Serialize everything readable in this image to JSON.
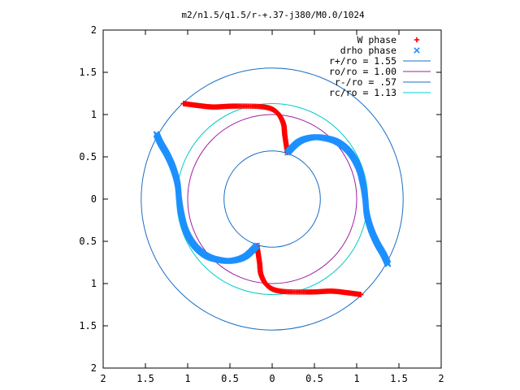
{
  "chart_data": {
    "type": "scatter",
    "title": "m2/n1.5/q1.5/r-+.37-j380/M0.0/1024",
    "xlim": [
      -2,
      2
    ],
    "ylim": [
      -2,
      2
    ],
    "x_tick_labels": [
      "2",
      "1.5",
      "1",
      "0.5",
      "0",
      "0.5",
      "1",
      "1.5",
      "2"
    ],
    "y_tick_labels": [
      "2",
      "1.5",
      "1",
      "0.5",
      "0",
      "0.5",
      "1",
      "1.5",
      "2"
    ],
    "grid": false,
    "legend_position": "top-right",
    "series": [
      {
        "name": "W phase",
        "kind": "points",
        "marker": "+",
        "color": "#ff0000",
        "points": [
          [
            -1.05,
            1.13
          ],
          [
            -0.9,
            1.11
          ],
          [
            -0.7,
            1.09
          ],
          [
            -0.45,
            1.1
          ],
          [
            -0.1,
            1.09
          ],
          [
            0.05,
            1.03
          ],
          [
            0.13,
            0.9
          ],
          [
            0.15,
            0.75
          ],
          [
            0.18,
            0.55
          ]
        ]
      },
      {
        "name": "W phase",
        "kind": "points",
        "marker": "+",
        "color": "#ff0000",
        "points": [
          [
            -0.18,
            -0.55
          ],
          [
            -0.15,
            -0.75
          ],
          [
            -0.13,
            -0.9
          ],
          [
            -0.05,
            -1.03
          ],
          [
            0.1,
            -1.09
          ],
          [
            0.45,
            -1.1
          ],
          [
            0.7,
            -1.09
          ],
          [
            0.9,
            -1.11
          ],
          [
            1.05,
            -1.13
          ]
        ]
      },
      {
        "name": "drho phase",
        "kind": "points",
        "marker": "x",
        "color": "#1e90ff",
        "points": [
          [
            0.18,
            0.55
          ],
          [
            0.32,
            0.68
          ],
          [
            0.48,
            0.73
          ],
          [
            0.63,
            0.72
          ],
          [
            0.78,
            0.67
          ],
          [
            0.92,
            0.55
          ],
          [
            1.02,
            0.38
          ],
          [
            1.07,
            0.2
          ],
          [
            1.1,
            0.02
          ],
          [
            1.12,
            -0.18
          ],
          [
            1.17,
            -0.36
          ],
          [
            1.24,
            -0.52
          ],
          [
            1.32,
            -0.66
          ],
          [
            1.37,
            -0.77
          ]
        ]
      },
      {
        "name": "drho phase",
        "kind": "points",
        "marker": "x",
        "color": "#1e90ff",
        "points": [
          [
            -1.37,
            0.77
          ],
          [
            -1.32,
            0.66
          ],
          [
            -1.24,
            0.52
          ],
          [
            -1.17,
            0.36
          ],
          [
            -1.12,
            0.18
          ],
          [
            -1.1,
            -0.02
          ],
          [
            -1.07,
            -0.2
          ],
          [
            -1.02,
            -0.38
          ],
          [
            -0.92,
            -0.55
          ],
          [
            -0.78,
            -0.67
          ],
          [
            -0.63,
            -0.72
          ],
          [
            -0.48,
            -0.73
          ],
          [
            -0.32,
            -0.68
          ],
          [
            -0.18,
            -0.55
          ]
        ]
      },
      {
        "name": "r+/ro = 1.55",
        "kind": "circle",
        "radius": 1.55,
        "color": "#1a6fc4"
      },
      {
        "name": "ro/ro = 1.00",
        "kind": "circle",
        "radius": 1.0,
        "color": "#a020a0"
      },
      {
        "name": "r-/ro = .57",
        "kind": "circle",
        "radius": 0.57,
        "color": "#1a6fc4"
      },
      {
        "name": "rc/ro = 1.13",
        "kind": "circle",
        "radius": 1.13,
        "color": "#00cccc"
      }
    ],
    "legend": [
      {
        "label": "W phase",
        "marker": "+",
        "color": "#ff0000"
      },
      {
        "label": "drho phase",
        "marker": "x",
        "color": "#1e90ff"
      },
      {
        "label": "r+/ro = 1.55",
        "marker": "line",
        "color": "#1a6fc4"
      },
      {
        "label": "ro/ro = 1.00",
        "marker": "line",
        "color": "#a020a0"
      },
      {
        "label": "r-/ro = .57",
        "marker": "line",
        "color": "#1a6fc4"
      },
      {
        "label": "rc/ro = 1.13",
        "marker": "line",
        "color": "#00cccc"
      }
    ]
  }
}
